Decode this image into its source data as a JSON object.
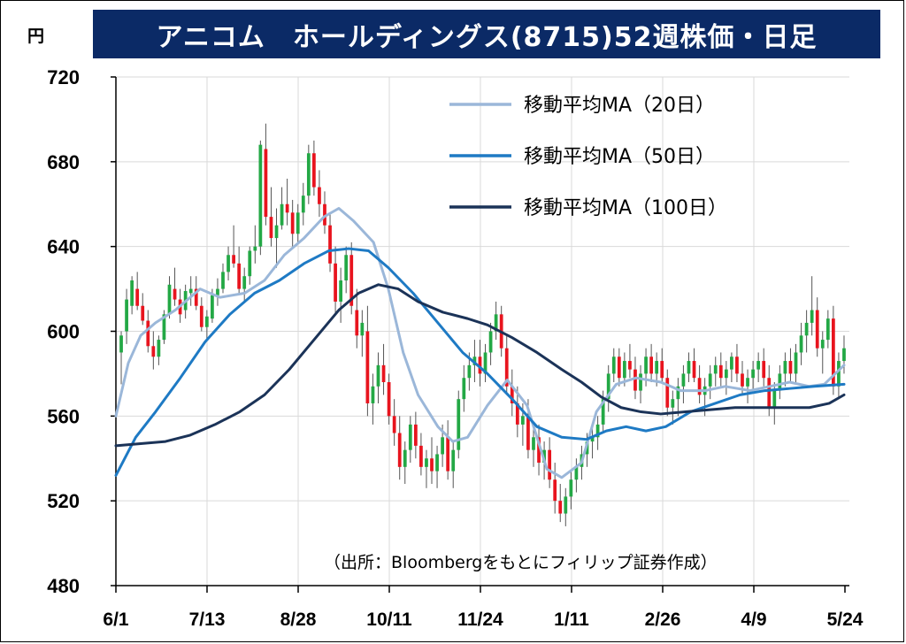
{
  "header": {
    "title": "アニコム　ホールディングス(8715)52週株価・日足",
    "unit": "円"
  },
  "chart_data": {
    "type": "candlestick",
    "title": "アニコム　ホールディングス(8715)52週株価・日足",
    "ylabel": "円",
    "ylim": [
      480,
      720
    ],
    "yticks": [
      720,
      680,
      640,
      600,
      560,
      520,
      480
    ],
    "xtick_labels": [
      "6/1",
      "7/13",
      "8/28",
      "10/11",
      "11/24",
      "1/11",
      "2/26",
      "4/9",
      "5/24"
    ],
    "grid": true,
    "legend_position": "top-right",
    "colors": {
      "up": "#23a845",
      "down": "#e8141e",
      "ma20": "#9bb7d9",
      "ma50": "#1e7ac4",
      "ma100": "#1b3358",
      "title_bg": "#0b2a66"
    },
    "series": [
      {
        "name": "移動平均MA（20日）",
        "color": "#9bb7d9",
        "values": [
          [
            0,
            560
          ],
          [
            5,
            585
          ],
          [
            10,
            598
          ],
          [
            16,
            604
          ],
          [
            24,
            610
          ],
          [
            34,
            620
          ],
          [
            42,
            616
          ],
          [
            52,
            618
          ],
          [
            60,
            624
          ],
          [
            68,
            636
          ],
          [
            76,
            644
          ],
          [
            84,
            654
          ],
          [
            90,
            658
          ],
          [
            96,
            652
          ],
          [
            104,
            642
          ],
          [
            110,
            620
          ],
          [
            116,
            590
          ],
          [
            122,
            570
          ],
          [
            130,
            555
          ],
          [
            136,
            548
          ],
          [
            142,
            550
          ],
          [
            150,
            565
          ],
          [
            158,
            577
          ],
          [
            166,
            565
          ],
          [
            174,
            535
          ],
          [
            180,
            531
          ],
          [
            188,
            538
          ],
          [
            194,
            562
          ],
          [
            202,
            575
          ],
          [
            210,
            578
          ],
          [
            220,
            576
          ],
          [
            228,
            572
          ],
          [
            238,
            572
          ],
          [
            246,
            574
          ],
          [
            256,
            572
          ],
          [
            264,
            574
          ],
          [
            272,
            576
          ],
          [
            280,
            574
          ],
          [
            286,
            575
          ],
          [
            294,
            584
          ]
        ]
      },
      {
        "name": "移動平均MA（50日）",
        "color": "#1e7ac4",
        "values": [
          [
            0,
            532
          ],
          [
            8,
            550
          ],
          [
            16,
            562
          ],
          [
            26,
            578
          ],
          [
            36,
            595
          ],
          [
            46,
            608
          ],
          [
            56,
            618
          ],
          [
            66,
            624
          ],
          [
            76,
            632
          ],
          [
            86,
            638
          ],
          [
            94,
            639
          ],
          [
            102,
            638
          ],
          [
            110,
            630
          ],
          [
            120,
            618
          ],
          [
            130,
            604
          ],
          [
            140,
            590
          ],
          [
            150,
            580
          ],
          [
            160,
            568
          ],
          [
            170,
            555
          ],
          [
            180,
            550
          ],
          [
            190,
            549
          ],
          [
            198,
            553
          ],
          [
            206,
            555
          ],
          [
            214,
            553
          ],
          [
            222,
            555
          ],
          [
            232,
            562
          ],
          [
            242,
            566
          ],
          [
            252,
            570
          ],
          [
            262,
            572
          ],
          [
            272,
            573
          ],
          [
            282,
            574
          ],
          [
            294,
            575
          ]
        ]
      },
      {
        "name": "移動平均MA（100日）",
        "color": "#1b3358",
        "values": [
          [
            0,
            546
          ],
          [
            10,
            547
          ],
          [
            20,
            548
          ],
          [
            30,
            551
          ],
          [
            40,
            556
          ],
          [
            50,
            562
          ],
          [
            60,
            570
          ],
          [
            70,
            582
          ],
          [
            80,
            596
          ],
          [
            90,
            610
          ],
          [
            98,
            618
          ],
          [
            106,
            622
          ],
          [
            114,
            620
          ],
          [
            122,
            614
          ],
          [
            132,
            609
          ],
          [
            142,
            606
          ],
          [
            150,
            603
          ],
          [
            160,
            597
          ],
          [
            170,
            590
          ],
          [
            180,
            582
          ],
          [
            188,
            576
          ],
          [
            196,
            569
          ],
          [
            204,
            564
          ],
          [
            212,
            562
          ],
          [
            220,
            561
          ],
          [
            230,
            562
          ],
          [
            240,
            563
          ],
          [
            250,
            564
          ],
          [
            260,
            564
          ],
          [
            270,
            564
          ],
          [
            280,
            564
          ],
          [
            288,
            566
          ],
          [
            294,
            570
          ]
        ]
      }
    ],
    "candles": [
      [
        590,
        600,
        575,
        598
      ],
      [
        600,
        620,
        594,
        615
      ],
      [
        612,
        626,
        608,
        624
      ],
      [
        620,
        628,
        610,
        612
      ],
      [
        612,
        618,
        603,
        605
      ],
      [
        605,
        610,
        590,
        593
      ],
      [
        593,
        600,
        582,
        588
      ],
      [
        588,
        598,
        584,
        596
      ],
      [
        596,
        610,
        594,
        608
      ],
      [
        608,
        626,
        606,
        622
      ],
      [
        620,
        630,
        612,
        615
      ],
      [
        615,
        620,
        604,
        608
      ],
      [
        610,
        622,
        606,
        619
      ],
      [
        618,
        626,
        612,
        620
      ],
      [
        620,
        626,
        610,
        612
      ],
      [
        612,
        616,
        600,
        602
      ],
      [
        602,
        610,
        596,
        607
      ],
      [
        606,
        620,
        604,
        617
      ],
      [
        617,
        625,
        612,
        620
      ],
      [
        620,
        632,
        618,
        628
      ],
      [
        628,
        640,
        624,
        636
      ],
      [
        636,
        650,
        630,
        632
      ],
      [
        632,
        640,
        618,
        620
      ],
      [
        620,
        630,
        614,
        626
      ],
      [
        626,
        640,
        622,
        638
      ],
      [
        638,
        650,
        632,
        640
      ],
      [
        640,
        690,
        636,
        688
      ],
      [
        686,
        698,
        650,
        654
      ],
      [
        654,
        668,
        640,
        644
      ],
      [
        644,
        658,
        630,
        650
      ],
      [
        650,
        668,
        648,
        660
      ],
      [
        660,
        672,
        650,
        656
      ],
      [
        656,
        662,
        640,
        646
      ],
      [
        646,
        660,
        642,
        656
      ],
      [
        656,
        670,
        650,
        664
      ],
      [
        664,
        688,
        660,
        684
      ],
      [
        684,
        690,
        664,
        668
      ],
      [
        668,
        676,
        654,
        660
      ],
      [
        660,
        666,
        646,
        650
      ],
      [
        650,
        656,
        628,
        632
      ],
      [
        632,
        640,
        608,
        614
      ],
      [
        614,
        630,
        604,
        624
      ],
      [
        624,
        640,
        618,
        636
      ],
      [
        636,
        642,
        608,
        612
      ],
      [
        610,
        620,
        592,
        598
      ],
      [
        598,
        610,
        588,
        604
      ],
      [
        600,
        612,
        560,
        566
      ],
      [
        566,
        580,
        556,
        574
      ],
      [
        574,
        590,
        566,
        584
      ],
      [
        584,
        594,
        570,
        576
      ],
      [
        576,
        580,
        556,
        560
      ],
      [
        560,
        568,
        546,
        552
      ],
      [
        552,
        560,
        530,
        536
      ],
      [
        536,
        548,
        528,
        544
      ],
      [
        544,
        560,
        538,
        556
      ],
      [
        556,
        562,
        540,
        546
      ],
      [
        546,
        552,
        532,
        536
      ],
      [
        536,
        544,
        526,
        540
      ],
      [
        540,
        550,
        528,
        534
      ],
      [
        534,
        546,
        526,
        542
      ],
      [
        542,
        556,
        536,
        550
      ],
      [
        550,
        558,
        530,
        534
      ],
      [
        534,
        548,
        526,
        544
      ],
      [
        544,
        572,
        540,
        568
      ],
      [
        568,
        584,
        562,
        578
      ],
      [
        578,
        590,
        572,
        584
      ],
      [
        584,
        596,
        576,
        588
      ],
      [
        588,
        596,
        574,
        580
      ],
      [
        580,
        594,
        576,
        590
      ],
      [
        590,
        604,
        584,
        600
      ],
      [
        600,
        614,
        596,
        608
      ],
      [
        608,
        612,
        588,
        592
      ],
      [
        592,
        598,
        570,
        574
      ],
      [
        574,
        582,
        560,
        566
      ],
      [
        566,
        574,
        550,
        556
      ],
      [
        556,
        566,
        546,
        560
      ],
      [
        560,
        568,
        540,
        544
      ],
      [
        544,
        556,
        536,
        550
      ],
      [
        550,
        556,
        532,
        538
      ],
      [
        538,
        548,
        530,
        544
      ],
      [
        544,
        550,
        526,
        530
      ],
      [
        530,
        538,
        514,
        520
      ],
      [
        520,
        528,
        510,
        514
      ],
      [
        514,
        526,
        508,
        522
      ],
      [
        522,
        534,
        516,
        530
      ],
      [
        530,
        540,
        524,
        536
      ],
      [
        536,
        546,
        530,
        542
      ],
      [
        542,
        552,
        536,
        548
      ],
      [
        548,
        556,
        540,
        550
      ],
      [
        550,
        560,
        544,
        556
      ],
      [
        556,
        572,
        552,
        568
      ],
      [
        568,
        584,
        562,
        580
      ],
      [
        580,
        592,
        576,
        588
      ],
      [
        588,
        592,
        574,
        578
      ],
      [
        578,
        590,
        574,
        586
      ],
      [
        586,
        594,
        578,
        582
      ],
      [
        582,
        588,
        568,
        572
      ],
      [
        572,
        584,
        566,
        580
      ],
      [
        580,
        592,
        574,
        588
      ],
      [
        588,
        594,
        576,
        580
      ],
      [
        580,
        590,
        574,
        586
      ],
      [
        586,
        592,
        576,
        578
      ],
      [
        578,
        582,
        560,
        564
      ],
      [
        564,
        572,
        556,
        568
      ],
      [
        568,
        578,
        560,
        574
      ],
      [
        574,
        584,
        566,
        580
      ],
      [
        580,
        590,
        576,
        586
      ],
      [
        586,
        592,
        576,
        578
      ],
      [
        578,
        584,
        566,
        570
      ],
      [
        570,
        578,
        560,
        574
      ],
      [
        574,
        584,
        568,
        580
      ],
      [
        580,
        588,
        574,
        584
      ],
      [
        584,
        590,
        574,
        578
      ],
      [
        578,
        586,
        570,
        582
      ],
      [
        582,
        590,
        576,
        588
      ],
      [
        588,
        594,
        576,
        580
      ],
      [
        580,
        586,
        570,
        574
      ],
      [
        574,
        582,
        566,
        578
      ],
      [
        578,
        586,
        572,
        582
      ],
      [
        582,
        590,
        576,
        586
      ],
      [
        586,
        592,
        574,
        578
      ],
      [
        578,
        584,
        560,
        564
      ],
      [
        564,
        576,
        556,
        572
      ],
      [
        572,
        584,
        568,
        580
      ],
      [
        580,
        590,
        574,
        586
      ],
      [
        586,
        592,
        576,
        580
      ],
      [
        580,
        594,
        576,
        590
      ],
      [
        590,
        604,
        584,
        598
      ],
      [
        598,
        610,
        590,
        604
      ],
      [
        604,
        626,
        598,
        610
      ],
      [
        610,
        616,
        588,
        592
      ],
      [
        592,
        600,
        580,
        596
      ],
      [
        596,
        610,
        592,
        606
      ],
      [
        606,
        612,
        570,
        574
      ],
      [
        574,
        590,
        568,
        586
      ],
      [
        586,
        598,
        580,
        592
      ]
    ]
  },
  "legend": {
    "items": [
      {
        "label": "移動平均MA（20日）",
        "color": "#9bb7d9"
      },
      {
        "label": "移動平均MA（50日）",
        "color": "#1e7ac4"
      },
      {
        "label": "移動平均MA（100日）",
        "color": "#1b3358"
      }
    ]
  },
  "source": {
    "text": "（出所：Bloombergをもとにフィリップ証券作成）"
  }
}
